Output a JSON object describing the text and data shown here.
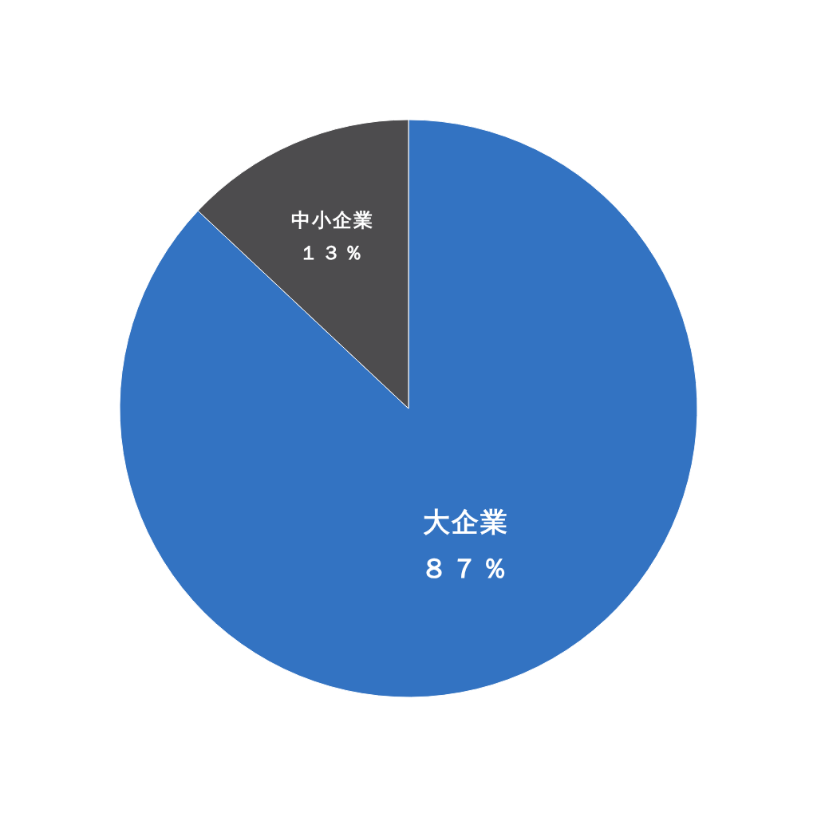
{
  "chart_data": {
    "type": "pie",
    "categories": [
      "大企業",
      "中小企業"
    ],
    "values": [
      87,
      13
    ],
    "colors": [
      "#3373c2",
      "#4d4c4e"
    ],
    "value_labels": [
      "８７％",
      "１３％"
    ],
    "legend": false
  }
}
